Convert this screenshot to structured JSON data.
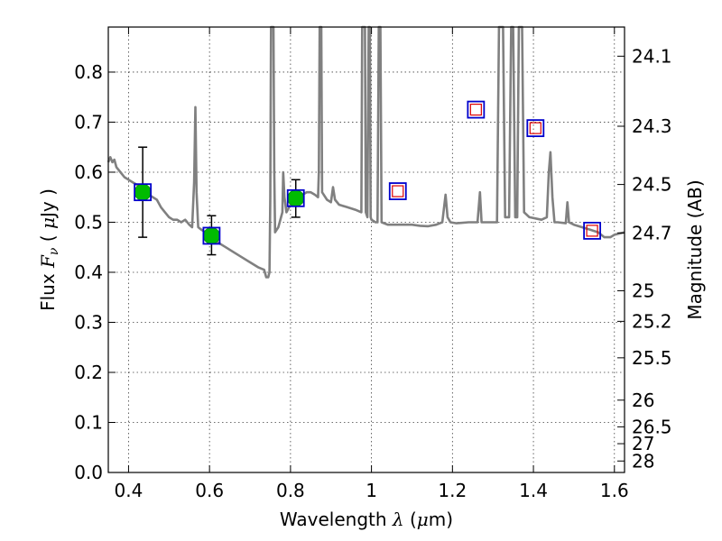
{
  "chart_data": {
    "type": "line",
    "xlabel_text": "Wavelength",
    "xlabel_symbol": "λ",
    "xlabel_unit_open": " (",
    "xlabel_unit_mu": "μ",
    "xlabel_unit_close": "m)",
    "ylabel_text": "Flux",
    "ylabel_symbol": "F",
    "ylabel_subscript": "ν",
    "ylabel_unit_open": "  ( ",
    "ylabel_unit_mu": "μ",
    "ylabel_unit_close": "Jy )",
    "y2label": "Magnitude (AB)",
    "xlim": [
      0.35,
      1.625
    ],
    "ylim": [
      0.0,
      0.89
    ],
    "grid": true,
    "x_ticks": [
      0.4,
      0.6,
      0.8,
      1.0,
      1.2,
      1.4,
      1.6
    ],
    "x_tick_labels": [
      "0.4",
      "0.6",
      "0.8",
      "1",
      "1.2",
      "1.4",
      "1.6"
    ],
    "y_ticks": [
      0.0,
      0.1,
      0.2,
      0.3,
      0.4,
      0.5,
      0.6,
      0.7,
      0.8
    ],
    "y_tick_labels": [
      "0.0",
      "0.1",
      "0.2",
      "0.3",
      "0.4",
      "0.5",
      "0.6",
      "0.7",
      "0.8"
    ],
    "mag_ticks": [
      24.1,
      24.3,
      24.5,
      24.7,
      25,
      25.2,
      25.5,
      26,
      26.5,
      27,
      28
    ],
    "mag_tick_labels": [
      "24.1",
      "24.3",
      "24.5",
      "24.7",
      "25",
      "25.2",
      "25.5",
      "26",
      "26.5",
      "27",
      "28"
    ],
    "series": [
      {
        "style": "model-spectrum",
        "color": "#808080",
        "points": [
          [
            0.35,
            0.62
          ],
          [
            0.355,
            0.63
          ],
          [
            0.36,
            0.62
          ],
          [
            0.365,
            0.625
          ],
          [
            0.37,
            0.61
          ],
          [
            0.38,
            0.6
          ],
          [
            0.39,
            0.59
          ],
          [
            0.4,
            0.585
          ],
          [
            0.41,
            0.58
          ],
          [
            0.42,
            0.575
          ],
          [
            0.43,
            0.57
          ],
          [
            0.44,
            0.565
          ],
          [
            0.45,
            0.555
          ],
          [
            0.46,
            0.55
          ],
          [
            0.47,
            0.545
          ],
          [
            0.48,
            0.53
          ],
          [
            0.49,
            0.52
          ],
          [
            0.5,
            0.51
          ],
          [
            0.51,
            0.505
          ],
          [
            0.52,
            0.505
          ],
          [
            0.53,
            0.5
          ],
          [
            0.54,
            0.505
          ],
          [
            0.55,
            0.495
          ],
          [
            0.557,
            0.49
          ],
          [
            0.562,
            0.58
          ],
          [
            0.565,
            0.73
          ],
          [
            0.568,
            0.56
          ],
          [
            0.572,
            0.49
          ],
          [
            0.58,
            0.485
          ],
          [
            0.59,
            0.48
          ],
          [
            0.6,
            0.47
          ],
          [
            0.62,
            0.46
          ],
          [
            0.64,
            0.45
          ],
          [
            0.66,
            0.44
          ],
          [
            0.68,
            0.43
          ],
          [
            0.7,
            0.42
          ],
          [
            0.72,
            0.41
          ],
          [
            0.735,
            0.405
          ],
          [
            0.74,
            0.39
          ],
          [
            0.745,
            0.39
          ],
          [
            0.748,
            0.4
          ],
          [
            0.75,
            0.55
          ],
          [
            0.752,
            0.9
          ],
          [
            0.758,
            0.9
          ],
          [
            0.76,
            0.6
          ],
          [
            0.762,
            0.48
          ],
          [
            0.77,
            0.49
          ],
          [
            0.78,
            0.52
          ],
          [
            0.782,
            0.6
          ],
          [
            0.785,
            0.55
          ],
          [
            0.79,
            0.52
          ],
          [
            0.8,
            0.535
          ],
          [
            0.81,
            0.545
          ],
          [
            0.82,
            0.55
          ],
          [
            0.83,
            0.555
          ],
          [
            0.84,
            0.56
          ],
          [
            0.85,
            0.56
          ],
          [
            0.86,
            0.555
          ],
          [
            0.868,
            0.55
          ],
          [
            0.87,
            0.6
          ],
          [
            0.872,
            0.9
          ],
          [
            0.876,
            0.9
          ],
          [
            0.878,
            0.56
          ],
          [
            0.89,
            0.545
          ],
          [
            0.9,
            0.54
          ],
          [
            0.905,
            0.57
          ],
          [
            0.91,
            0.545
          ],
          [
            0.92,
            0.535
          ],
          [
            0.94,
            0.53
          ],
          [
            0.96,
            0.525
          ],
          [
            0.975,
            0.52
          ],
          [
            0.977,
            0.9
          ],
          [
            0.984,
            0.9
          ],
          [
            0.986,
            0.52
          ],
          [
            0.99,
            0.51
          ],
          [
            0.993,
            0.9
          ],
          [
            0.996,
            0.9
          ],
          [
            0.998,
            0.51
          ],
          [
            1.0,
            0.505
          ],
          [
            1.01,
            0.5
          ],
          [
            1.015,
            0.5
          ],
          [
            1.018,
            0.9
          ],
          [
            1.022,
            0.9
          ],
          [
            1.025,
            0.5
          ],
          [
            1.04,
            0.495
          ],
          [
            1.06,
            0.495
          ],
          [
            1.08,
            0.495
          ],
          [
            1.1,
            0.495
          ],
          [
            1.12,
            0.493
          ],
          [
            1.14,
            0.492
          ],
          [
            1.16,
            0.495
          ],
          [
            1.175,
            0.5
          ],
          [
            1.183,
            0.555
          ],
          [
            1.188,
            0.51
          ],
          [
            1.195,
            0.5
          ],
          [
            1.21,
            0.498
          ],
          [
            1.24,
            0.5
          ],
          [
            1.262,
            0.5
          ],
          [
            1.268,
            0.56
          ],
          [
            1.272,
            0.5
          ],
          [
            1.3,
            0.5
          ],
          [
            1.31,
            0.5
          ],
          [
            1.315,
            0.9
          ],
          [
            1.325,
            0.9
          ],
          [
            1.33,
            0.51
          ],
          [
            1.34,
            0.51
          ],
          [
            1.345,
            0.9
          ],
          [
            1.35,
            0.9
          ],
          [
            1.355,
            0.51
          ],
          [
            1.36,
            0.51
          ],
          [
            1.364,
            0.9
          ],
          [
            1.372,
            0.9
          ],
          [
            1.377,
            0.52
          ],
          [
            1.39,
            0.51
          ],
          [
            1.42,
            0.505
          ],
          [
            1.433,
            0.51
          ],
          [
            1.438,
            0.6
          ],
          [
            1.442,
            0.64
          ],
          [
            1.447,
            0.55
          ],
          [
            1.452,
            0.5
          ],
          [
            1.46,
            0.5
          ],
          [
            1.48,
            0.498
          ],
          [
            1.484,
            0.54
          ],
          [
            1.488,
            0.5
          ],
          [
            1.5,
            0.495
          ],
          [
            1.52,
            0.49
          ],
          [
            1.54,
            0.485
          ],
          [
            1.56,
            0.48
          ],
          [
            1.575,
            0.47
          ],
          [
            1.59,
            0.47
          ],
          [
            1.6,
            0.475
          ],
          [
            1.625,
            0.48
          ]
        ]
      }
    ],
    "observed_points": [
      {
        "x": 0.435,
        "y": 0.56,
        "err_low": 0.47,
        "err_high": 0.65
      },
      {
        "x": 0.605,
        "y": 0.473,
        "err_low": 0.435,
        "err_high": 0.513
      },
      {
        "x": 0.813,
        "y": 0.548,
        "err_low": 0.51,
        "err_high": 0.585
      }
    ],
    "model_bands": [
      {
        "x": 0.435,
        "y": 0.56,
        "red_inner": false
      },
      {
        "x": 0.605,
        "y": 0.473,
        "red_inner": false
      },
      {
        "x": 0.813,
        "y": 0.548,
        "red_inner": false
      },
      {
        "x": 1.065,
        "y": 0.562,
        "red_inner": true
      },
      {
        "x": 1.258,
        "y": 0.725,
        "red_inner": true
      },
      {
        "x": 1.405,
        "y": 0.688,
        "red_inner": true
      },
      {
        "x": 1.545,
        "y": 0.483,
        "red_inner": true
      }
    ],
    "colors": {
      "spectrum": "#808080",
      "points": "#00bb00",
      "model_square": "#0000cc",
      "model_inner": "#dd0000"
    }
  }
}
